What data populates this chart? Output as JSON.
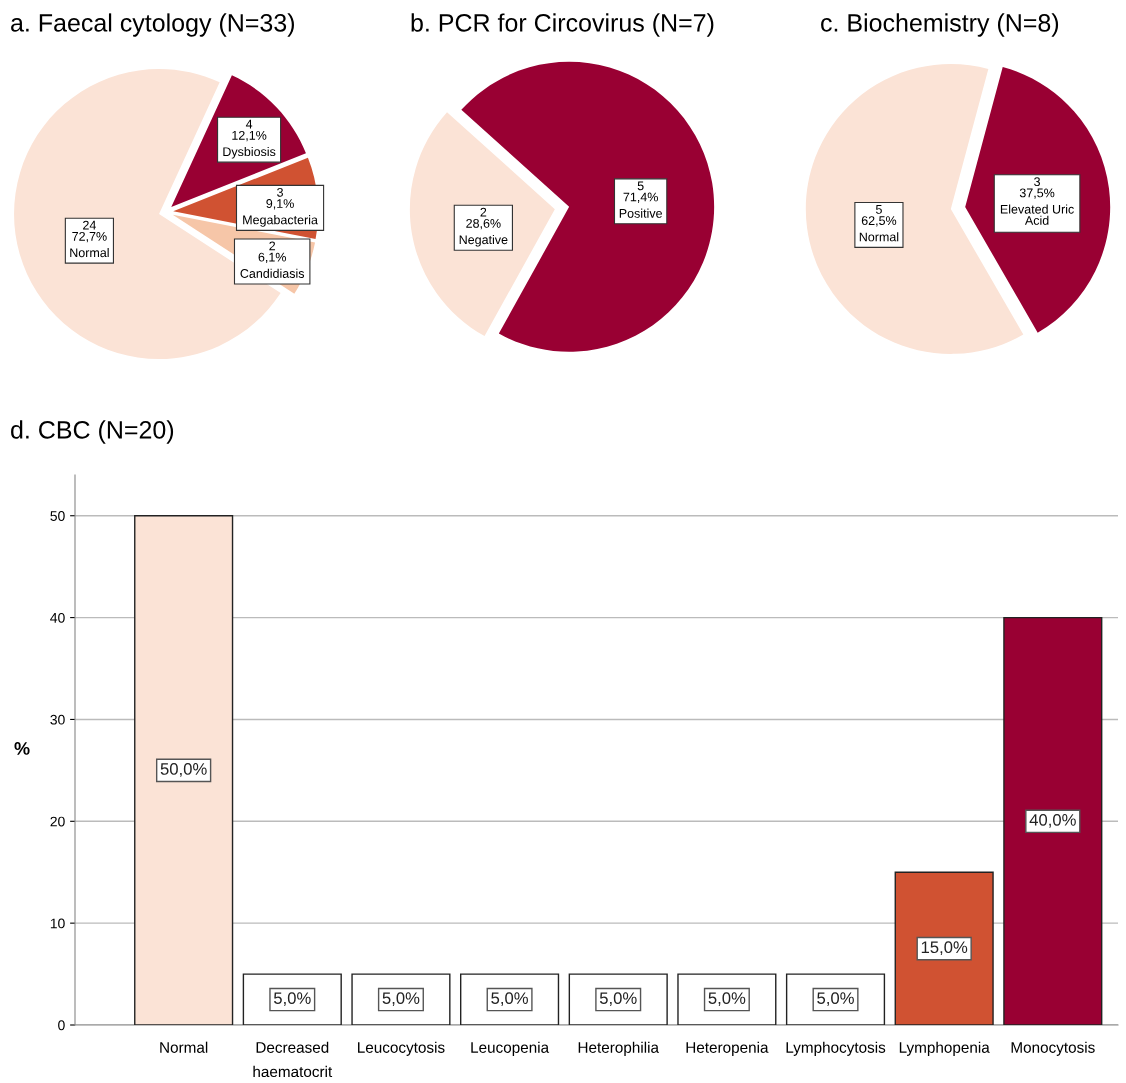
{
  "chart_data": [
    {
      "type": "pie",
      "title": "a. Faecal cytology (N=33)",
      "categories": [
        "Normal",
        "Dysbiosis",
        "Megabacteria",
        "Candidiasis"
      ],
      "values": [
        72.7,
        12.1,
        9.1,
        6.1
      ],
      "value_labels": [
        "24\n72,7%",
        "4\n12,1%",
        "3\n9,1%",
        "2\n6,1%"
      ],
      "colors": [
        "#fbe3d6",
        "#990033",
        "#d05232",
        "#f6c6a8"
      ]
    },
    {
      "type": "pie",
      "title": "b. PCR for Circovirus (N=7)",
      "categories": [
        "Negative",
        "Positive"
      ],
      "values": [
        28.6,
        71.4
      ],
      "value_labels": [
        "2\n28,6%",
        "5\n71,4%"
      ],
      "colors": [
        "#fbe3d6",
        "#990033"
      ]
    },
    {
      "type": "pie",
      "title": "c. Biochemistry (N=8)",
      "categories": [
        "Normal",
        "Elevated Uric\nAcid"
      ],
      "values": [
        62.5,
        37.5
      ],
      "value_labels": [
        "5\n62,5%",
        "3\n37,5%"
      ],
      "colors": [
        "#fbe3d6",
        "#990033"
      ]
    },
    {
      "type": "bar",
      "title": "d. CBC (N=20)",
      "ylabel": "%",
      "categories": [
        "Normal",
        "Decreased\nhaematocrit",
        "Leucocytosis",
        "Leucopenia",
        "Heterophilia",
        "Heteropenia",
        "Lymphocytosis",
        "Lymphopenia",
        "Monocytosis"
      ],
      "values": [
        50,
        5,
        5,
        5,
        5,
        5,
        5,
        15,
        40
      ],
      "value_labels": [
        "50,0%",
        "5,0%",
        "5,0%",
        "5,0%",
        "5,0%",
        "5,0%",
        "5,0%",
        "15,0%",
        "40,0%"
      ],
      "colors": [
        "#fbe3d6",
        "#ffffff",
        "#ffffff",
        "#ffffff",
        "#ffffff",
        "#ffffff",
        "#ffffff",
        "#d05232",
        "#990033"
      ],
      "ylim": [
        0,
        54
      ],
      "yticks": [
        0,
        10,
        20,
        30,
        40,
        50
      ],
      "grid": "y"
    }
  ]
}
